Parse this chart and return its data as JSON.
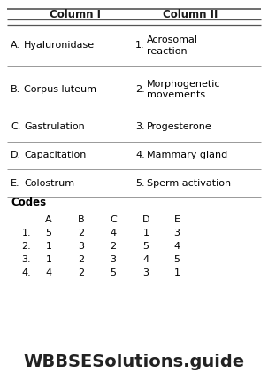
{
  "title_col1": "Column I",
  "title_col2": "Column II",
  "rows": [
    {
      "letter": "A.",
      "col1": "Hyaluronidase",
      "num": "1.",
      "col2": "Acrosomal\nreaction"
    },
    {
      "letter": "B.",
      "col1": "Corpus luteum",
      "num": "2.",
      "col2": "Morphogenetic\nmovements"
    },
    {
      "letter": "C.",
      "col1": "Gastrulation",
      "num": "3.",
      "col2": "Progesterone"
    },
    {
      "letter": "D.",
      "col1": "Capacitation",
      "num": "4.",
      "col2": "Mammary gland"
    },
    {
      "letter": "E.",
      "col1": "Colostrum",
      "num": "5.",
      "col2": "Sperm activation"
    }
  ],
  "codes_label": "Codes",
  "codes_header": [
    "A",
    "B",
    "C",
    "D",
    "E"
  ],
  "codes_rows": [
    {
      "prefix": "1.",
      "vals": [
        "5",
        "2",
        "4",
        "1",
        "3"
      ]
    },
    {
      "prefix": "2.",
      "vals": [
        "1",
        "3",
        "2",
        "5",
        "4"
      ]
    },
    {
      "prefix": "3.",
      "vals": [
        "1",
        "2",
        "3",
        "4",
        "5"
      ]
    },
    {
      "prefix": "4.",
      "vals": [
        "4",
        "2",
        "5",
        "3",
        "1"
      ]
    }
  ],
  "watermark": "WBBSESolutions.guide",
  "bg_color": "#ffffff",
  "text_color": "#000000",
  "header_color": "#1a1a1a",
  "line_color": "#999999",
  "top_line_color": "#555555",
  "watermark_color": "#222222"
}
